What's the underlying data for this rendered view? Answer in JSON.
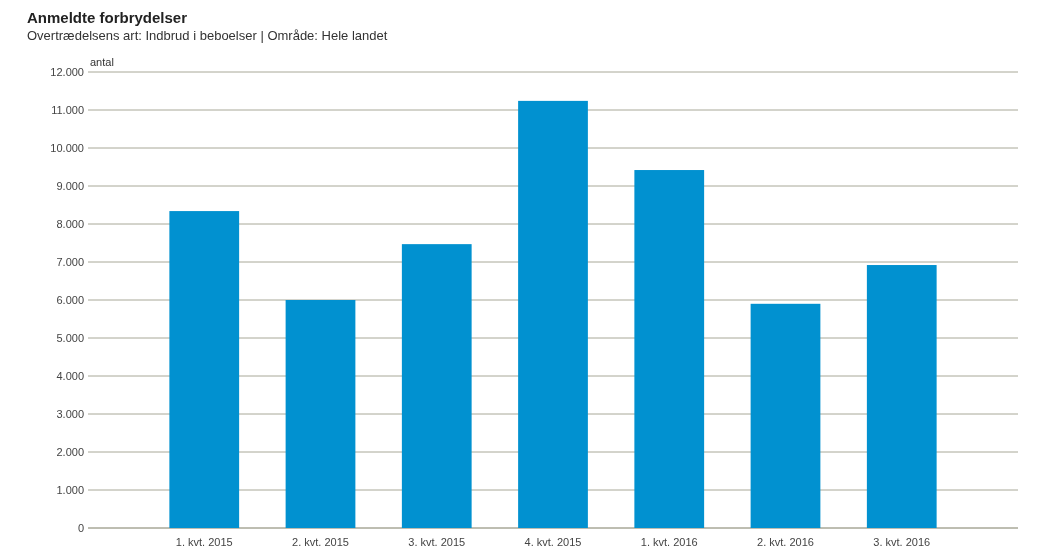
{
  "chart_data": {
    "type": "bar",
    "title": "Anmeldte forbrydelser",
    "subtitle": "Overtrædelsens art:  Indbrud i beboelser | Område:  Hele landet",
    "ylabel": "antal",
    "categories": [
      "1. kvt. 2015",
      "2. kvt. 2015",
      "3. kvt. 2015",
      "4. kvt. 2015",
      "1. kvt. 2016",
      "2. kvt. 2016",
      "3. kvt. 2016"
    ],
    "values": [
      8340,
      6000,
      7470,
      11240,
      9420,
      5900,
      6920
    ],
    "color": "#0191d0",
    "ylim": [
      0,
      12000
    ],
    "yticks": [
      {
        "value": 0,
        "label": "0"
      },
      {
        "value": 1000,
        "label": "1.000"
      },
      {
        "value": 2000,
        "label": "2.000"
      },
      {
        "value": 3000,
        "label": "3.000"
      },
      {
        "value": 4000,
        "label": "4.000"
      },
      {
        "value": 5000,
        "label": "5.000"
      },
      {
        "value": 6000,
        "label": "6.000"
      },
      {
        "value": 7000,
        "label": "7.000"
      },
      {
        "value": 8000,
        "label": "8.000"
      },
      {
        "value": 9000,
        "label": "9.000"
      },
      {
        "value": 10000,
        "label": "10.000"
      },
      {
        "value": 11000,
        "label": "11.000"
      },
      {
        "value": 12000,
        "label": "12.000"
      }
    ],
    "grid": "y"
  }
}
